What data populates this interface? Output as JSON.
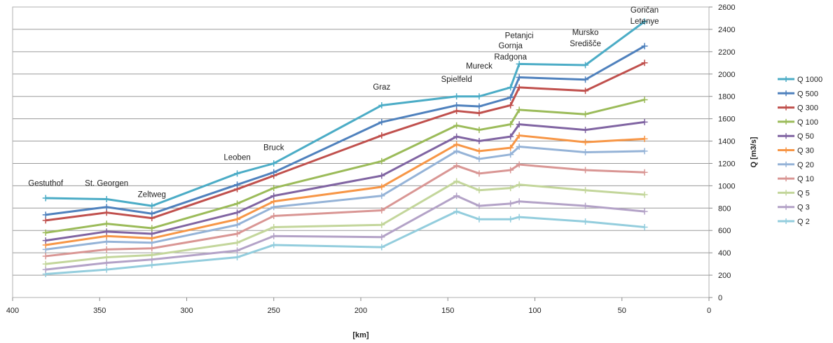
{
  "chart_data": {
    "type": "line",
    "xlabel": "[km]",
    "ylabel": "Q [m3/s]",
    "xlim": [
      400,
      0
    ],
    "ylim": [
      0,
      2600
    ],
    "x_ticks": [
      400,
      350,
      300,
      250,
      200,
      150,
      100,
      50,
      0
    ],
    "y_ticks": [
      0,
      200,
      400,
      600,
      800,
      1000,
      1200,
      1400,
      1600,
      1800,
      2000,
      2200,
      2400,
      2600
    ],
    "x_axis_reversed": true,
    "y_axis_position": "right",
    "grid": "horizontal",
    "legend_position": "right",
    "x": [
      381,
      346,
      320,
      271,
      250,
      188,
      145,
      132,
      114,
      109,
      71,
      37
    ],
    "series": [
      {
        "name": "Q 1000",
        "color": "#4BACC6",
        "values": [
          890,
          880,
          820,
          1110,
          1200,
          1720,
          1800,
          1800,
          1880,
          2090,
          2080,
          2470
        ]
      },
      {
        "name": "Q 500",
        "color": "#4F81BD",
        "values": [
          740,
          810,
          750,
          1010,
          1120,
          1570,
          1720,
          1710,
          1790,
          1970,
          1950,
          2250
        ]
      },
      {
        "name": "Q 300",
        "color": "#C0504D",
        "values": [
          690,
          760,
          710,
          970,
          1090,
          1450,
          1670,
          1650,
          1720,
          1880,
          1850,
          2100
        ]
      },
      {
        "name": "Q 100",
        "color": "#9BBB59",
        "values": [
          580,
          660,
          620,
          840,
          980,
          1220,
          1540,
          1500,
          1550,
          1680,
          1640,
          1770
        ]
      },
      {
        "name": "Q 50",
        "color": "#8064A2",
        "values": [
          510,
          590,
          570,
          760,
          910,
          1090,
          1440,
          1400,
          1440,
          1550,
          1500,
          1570
        ]
      },
      {
        "name": "Q 30",
        "color": "#F79646",
        "values": [
          470,
          550,
          530,
          700,
          860,
          990,
          1370,
          1310,
          1340,
          1450,
          1390,
          1420
        ]
      },
      {
        "name": "Q 20",
        "color": "#95B3D7",
        "values": [
          430,
          500,
          490,
          650,
          810,
          910,
          1310,
          1240,
          1280,
          1350,
          1300,
          1310
        ]
      },
      {
        "name": "Q 10",
        "color": "#D99694",
        "values": [
          370,
          430,
          440,
          570,
          730,
          780,
          1180,
          1110,
          1140,
          1190,
          1140,
          1120
        ]
      },
      {
        "name": "Q 5",
        "color": "#C3D69B",
        "values": [
          300,
          360,
          380,
          490,
          630,
          650,
          1040,
          960,
          980,
          1010,
          960,
          920
        ]
      },
      {
        "name": "Q 3",
        "color": "#B3A2C7",
        "values": [
          250,
          310,
          340,
          420,
          550,
          540,
          910,
          820,
          840,
          860,
          820,
          770
        ]
      },
      {
        "name": "Q 2",
        "color": "#93CDDD",
        "values": [
          210,
          250,
          290,
          360,
          470,
          450,
          770,
          700,
          700,
          720,
          680,
          630
        ]
      }
    ],
    "annotations": [
      {
        "lines": [
          "Gestuthof"
        ],
        "x": 381,
        "y": 1000
      },
      {
        "lines": [
          "St. Georgen"
        ],
        "x": 346,
        "y": 1000
      },
      {
        "lines": [
          "Zeltweg"
        ],
        "x": 320,
        "y": 900
      },
      {
        "lines": [
          "Leoben"
        ],
        "x": 271,
        "y": 1230
      },
      {
        "lines": [
          "Bruck"
        ],
        "x": 250,
        "y": 1320
      },
      {
        "lines": [
          "Graz"
        ],
        "x": 188,
        "y": 1860
      },
      {
        "lines": [
          "Spielfeld"
        ],
        "x": 145,
        "y": 1930
      },
      {
        "lines": [
          "Mureck"
        ],
        "x": 132,
        "y": 2050
      },
      {
        "lines": [
          "Gornja",
          "Radgona"
        ],
        "x": 114,
        "y": 2230
      },
      {
        "lines": [
          "Petanjci"
        ],
        "x": 109,
        "y": 2320
      },
      {
        "lines": [
          "Mursko",
          "Središče"
        ],
        "x": 71,
        "y": 2350
      },
      {
        "lines": [
          "Goričan",
          "Letenye"
        ],
        "x": 37,
        "y": 2550
      }
    ]
  }
}
